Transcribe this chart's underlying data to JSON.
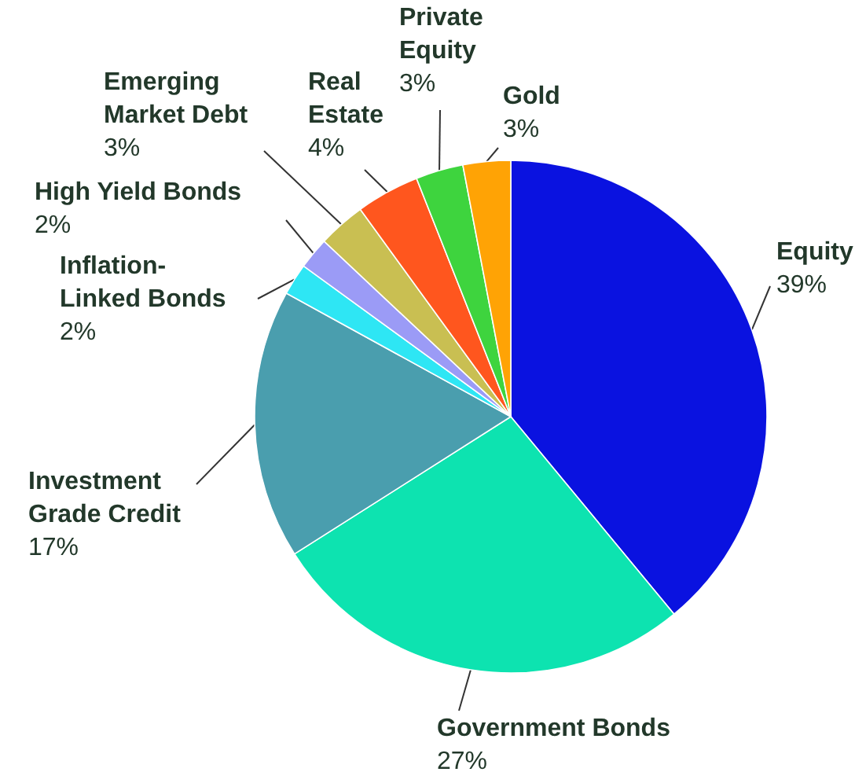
{
  "chart_data": {
    "type": "pie",
    "categories": [
      "Equity",
      "Government Bonds",
      "Investment Grade Credit",
      "Inflation-Linked Bonds",
      "High Yield Bonds",
      "Emerging Market Debt",
      "Real Estate",
      "Private Equity",
      "Gold"
    ],
    "values": [
      39,
      27,
      17,
      2,
      2,
      3,
      4,
      3,
      3
    ],
    "value_labels": [
      "39%",
      "27%",
      "17%",
      "2%",
      "2%",
      "3%",
      "4%",
      "3%",
      "3%"
    ],
    "colors": [
      "#0a12e0",
      "#0de3b0",
      "#4a9eae",
      "#2ee6f4",
      "#9b9bf6",
      "#c9bf52",
      "#ff561e",
      "#3ed43e",
      "#ffa305"
    ]
  }
}
